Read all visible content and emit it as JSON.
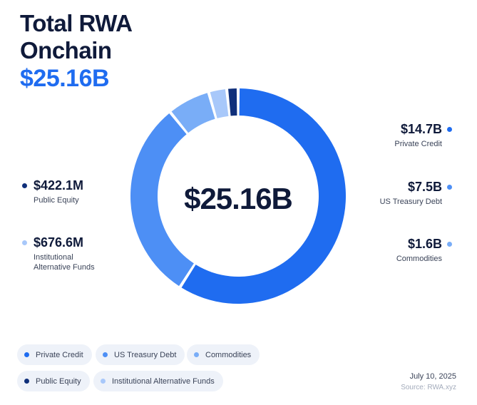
{
  "header": {
    "title_line1": "Total RWA",
    "title_line2": "Onchain",
    "total": "$25.16B"
  },
  "chart_data": {
    "type": "pie",
    "center_label": "$25.16B",
    "slices": [
      {
        "name": "Private Credit",
        "value": 14.7,
        "label": "$14.7B",
        "color": "#1f6cf0"
      },
      {
        "name": "US Treasury Debt",
        "value": 7.5,
        "label": "$7.5B",
        "color": "#4d8ff5"
      },
      {
        "name": "Commodities",
        "value": 1.6,
        "label": "$1.6B",
        "color": "#79adf7"
      },
      {
        "name": "Institutional Alternative Funds",
        "value": 0.6766,
        "label": "$676.6M",
        "color": "#a8c8fa"
      },
      {
        "name": "Public Equity",
        "value": 0.4221,
        "label": "$422.1M",
        "color": "#0f2f7a"
      }
    ],
    "callouts": {
      "private_credit": {
        "value": "$14.7B",
        "label": "Private Credit"
      },
      "us_treasury": {
        "value": "$7.5B",
        "label": "US Treasury Debt"
      },
      "commodities": {
        "value": "$1.6B",
        "label": "Commodities"
      },
      "public_equity": {
        "value": "$422.1M",
        "label": "Public Equity"
      },
      "inst_alt": {
        "value": "$676.6M",
        "label_line1": "Institutional",
        "label_line2": "Alternative Funds"
      }
    },
    "legend": [
      "Private Credit",
      "US Treasury Debt",
      "Commodities",
      "Public Equity",
      "Institutional Alternative Funds"
    ]
  },
  "footer": {
    "date": "July 10, 2025",
    "source": "Source: RWA.xyz"
  }
}
